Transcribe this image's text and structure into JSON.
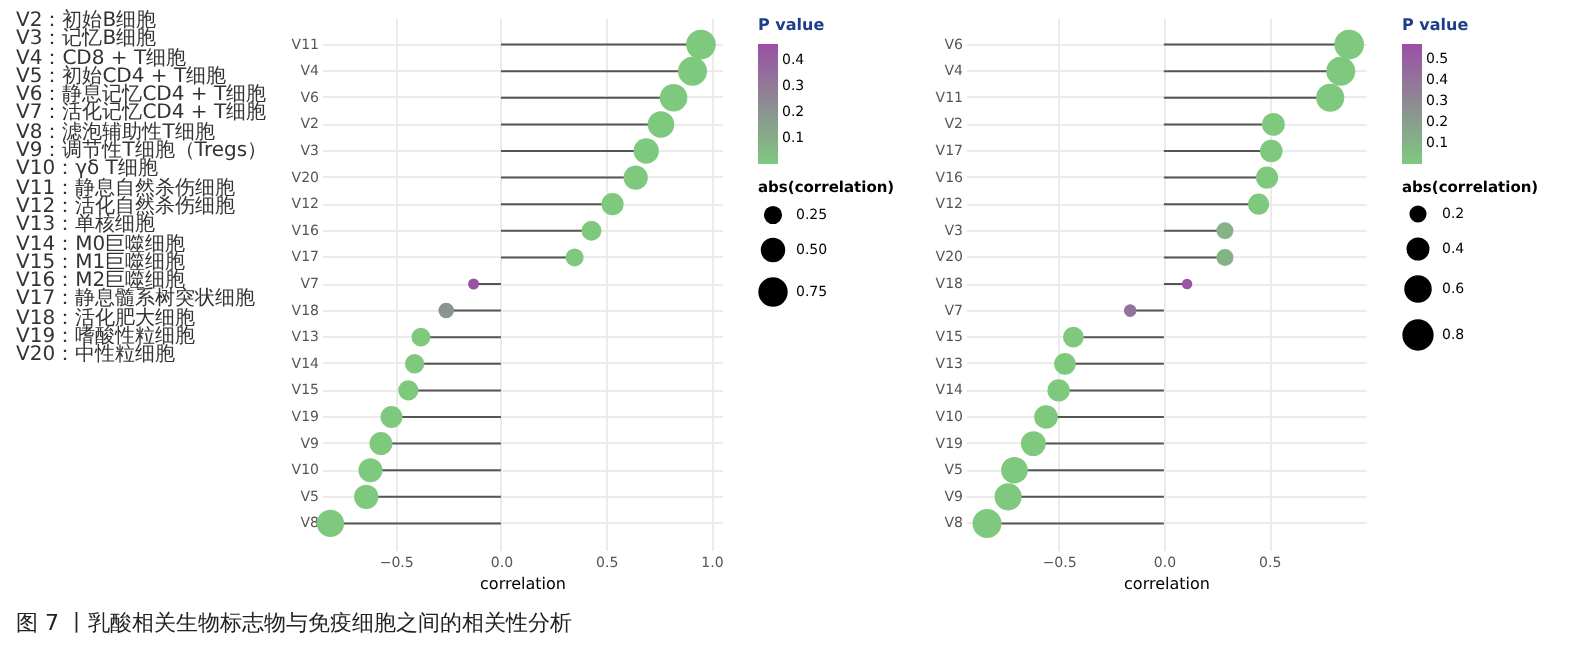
{
  "chart_data": [
    {
      "type": "lollipop",
      "categories": [
        "V11",
        "V4",
        "V6",
        "V2",
        "V3",
        "V20",
        "V12",
        "V16",
        "V17",
        "V7",
        "V18",
        "V13",
        "V14",
        "V15",
        "V19",
        "V9",
        "V10",
        "V5",
        "V8"
      ],
      "values": [
        0.95,
        0.91,
        0.82,
        0.76,
        0.69,
        0.64,
        0.53,
        0.43,
        0.35,
        -0.13,
        -0.26,
        -0.38,
        -0.41,
        -0.44,
        -0.52,
        -0.57,
        -0.62,
        -0.64,
        -0.81
      ],
      "sizes": [
        0.95,
        0.91,
        0.82,
        0.76,
        0.69,
        0.64,
        0.53,
        0.43,
        0.35,
        0.13,
        0.26,
        0.38,
        0.41,
        0.44,
        0.52,
        0.57,
        0.62,
        0.64,
        0.81
      ],
      "orientation": "horizontal",
      "size_legend": [
        {
          "value": 0.25,
          "label": "0.25"
        },
        {
          "value": 0.5,
          "label": "0.50"
        },
        {
          "value": 0.75,
          "label": "0.75"
        }
      ],
      "legend_title": "abs(correlation)",
      "cvalues": [
        0,
        0,
        0,
        0,
        0,
        0,
        0,
        0,
        0,
        0.45,
        0.2,
        0,
        0,
        0,
        0,
        0,
        0,
        0,
        0
      ],
      "clabel": "P value",
      "clim": [
        0,
        0.46
      ],
      "cticks": [
        0.1,
        0.2,
        0.3,
        0.4
      ],
      "xlabel": "correlation",
      "xlim": [
        -0.85,
        1.05
      ],
      "xticks": [
        {
          "value": -0.5,
          "label": "−0.5"
        },
        {
          "value": 0,
          "label": "0.0"
        },
        {
          "value": 0.5,
          "label": "0.5"
        },
        {
          "value": 1,
          "label": "1.0"
        }
      ],
      "grid": true,
      "annotations": [
        "V2：初始B细胞",
        "V3：记忆B细胞",
        "V4：CD8 + T细胞",
        "V5：初始CD4 + T细胞",
        "V6：静息记忆CD4 + T细胞",
        "V7：活化记忆CD4 + T细胞",
        "V8：滤泡辅助性T细胞",
        "V9：调节性T细胞（Tregs）",
        "V10：γδ T细胞",
        "V11：静息自然杀伤细胞",
        "V12：活化自然杀伤细胞",
        "V13：单核细胞",
        "V14：M0巨噬细胞",
        "V15：M1巨噬细胞",
        "V16：M2巨噬细胞",
        "V17：静息髓系树突状细胞",
        "V18：活化肥大细胞",
        "V19：嗜酸性粒细胞",
        "V20：中性粒细胞",
        "图 7 丨乳酸相关生物标志物与免疫细胞之间的相关性分析"
      ]
    },
    {
      "type": "lollipop",
      "categories": [
        "V6",
        "V4",
        "V11",
        "V2",
        "V17",
        "V16",
        "V12",
        "V3",
        "V20",
        "V18",
        "V7",
        "V15",
        "V13",
        "V14",
        "V10",
        "V19",
        "V5",
        "V9",
        "V8"
      ],
      "values": [
        0.88,
        0.84,
        0.79,
        0.52,
        0.51,
        0.49,
        0.45,
        0.29,
        0.29,
        0.11,
        -0.16,
        -0.43,
        -0.47,
        -0.5,
        -0.56,
        -0.62,
        -0.71,
        -0.74,
        -0.84
      ],
      "sizes": [
        0.88,
        0.84,
        0.79,
        0.52,
        0.51,
        0.49,
        0.45,
        0.29,
        0.29,
        0.11,
        0.16,
        0.43,
        0.47,
        0.5,
        0.56,
        0.62,
        0.71,
        0.74,
        0.84
      ],
      "orientation": "horizontal",
      "size_legend": [
        0.2,
        0.4,
        0.6,
        0.8
      ],
      "legend_title": "abs(correlation)",
      "cvalues": [
        0,
        0,
        0,
        0,
        0,
        0,
        0,
        0.1,
        0.1,
        0.55,
        0.4,
        0,
        0,
        0,
        0,
        0,
        0,
        0,
        0
      ],
      "clabel": "P value",
      "clim": [
        0,
        0.57
      ],
      "cticks": [
        0.1,
        0.2,
        0.3,
        0.4,
        0.5
      ],
      "xlabel": "correlation",
      "xlim": [
        -0.94,
        0.96
      ],
      "xticks": [
        {
          "value": -0.5,
          "label": "−0.5"
        },
        {
          "value": 0,
          "label": "0.0"
        },
        {
          "value": 0.5,
          "label": "0.5"
        }
      ],
      "grid": true
    }
  ]
}
